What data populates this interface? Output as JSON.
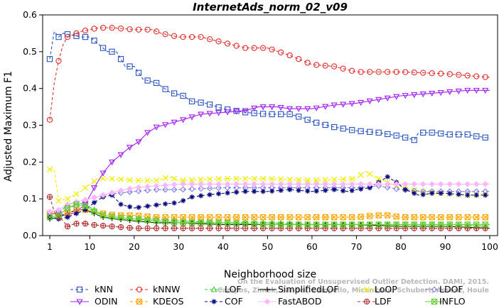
{
  "chart_data": {
    "type": "line",
    "title": "InternetAds_norm_02_v09",
    "xlabel": "Neighborhood size",
    "ylabel": "Adjusted Maximum F1",
    "xlim": [
      1,
      100
    ],
    "ylim": [
      0,
      0.6
    ],
    "xticks": [
      "1",
      "10",
      "20",
      "30",
      "40",
      "50",
      "60",
      "70",
      "80",
      "90",
      "100"
    ],
    "yticks": [
      "0.0",
      "0.1",
      "0.2",
      "0.3",
      "0.4",
      "0.5",
      "0.6"
    ],
    "grid": false,
    "legend_position": "bottom",
    "watermark": {
      "line1": "Campos, Zimek, Sander, Campello, Micenková, Schubert, Assent, Houle",
      "line2": "On the Evaluation of Unsupervised Outlier Detection. DAMI, 2015."
    },
    "series": [
      {
        "name": "kNN",
        "color": "#2a52be",
        "marker": "square",
        "dashed": true,
        "points": [
          [
            1,
            0.48
          ],
          [
            2,
            0.555
          ],
          [
            3,
            0.54
          ],
          [
            4,
            0.55
          ],
          [
            6,
            0.545
          ],
          [
            8,
            0.54
          ],
          [
            10,
            0.54
          ],
          [
            12,
            0.52
          ],
          [
            14,
            0.5
          ],
          [
            16,
            0.5
          ],
          [
            18,
            0.46
          ],
          [
            20,
            0.46
          ],
          [
            22,
            0.425
          ],
          [
            25,
            0.415
          ],
          [
            28,
            0.39
          ],
          [
            31,
            0.38
          ],
          [
            33,
            0.365
          ],
          [
            36,
            0.36
          ],
          [
            40,
            0.345
          ],
          [
            45,
            0.335
          ],
          [
            50,
            0.33
          ],
          [
            55,
            0.33
          ],
          [
            58,
            0.32
          ],
          [
            60,
            0.31
          ],
          [
            65,
            0.295
          ],
          [
            70,
            0.285
          ],
          [
            75,
            0.28
          ],
          [
            80,
            0.27
          ],
          [
            83,
            0.26
          ],
          [
            84,
            0.28
          ],
          [
            88,
            0.28
          ],
          [
            90,
            0.275
          ],
          [
            95,
            0.275
          ],
          [
            97,
            0.27
          ],
          [
            100,
            0.265
          ]
        ]
      },
      {
        "name": "kNNW",
        "color": "#e03030",
        "marker": "circle",
        "dashed": true,
        "points": [
          [
            1,
            0.315
          ],
          [
            2,
            0.415
          ],
          [
            3,
            0.475
          ],
          [
            4,
            0.52
          ],
          [
            5,
            0.54
          ],
          [
            8,
            0.555
          ],
          [
            10,
            0.56
          ],
          [
            12,
            0.565
          ],
          [
            15,
            0.565
          ],
          [
            20,
            0.56
          ],
          [
            24,
            0.56
          ],
          [
            26,
            0.55
          ],
          [
            30,
            0.54
          ],
          [
            35,
            0.54
          ],
          [
            40,
            0.525
          ],
          [
            45,
            0.51
          ],
          [
            50,
            0.51
          ],
          [
            55,
            0.49
          ],
          [
            60,
            0.465
          ],
          [
            65,
            0.46
          ],
          [
            70,
            0.445
          ],
          [
            80,
            0.445
          ],
          [
            90,
            0.44
          ],
          [
            100,
            0.43
          ]
        ]
      },
      {
        "name": "LOF",
        "color": "#33cc33",
        "marker": "triangle-up",
        "dashed": true,
        "points": [
          [
            1,
            0.055
          ],
          [
            3,
            0.06
          ],
          [
            5,
            0.085
          ],
          [
            7,
            0.09
          ],
          [
            9,
            0.085
          ],
          [
            11,
            0.07
          ],
          [
            13,
            0.055
          ],
          [
            16,
            0.05
          ],
          [
            20,
            0.045
          ],
          [
            25,
            0.045
          ],
          [
            30,
            0.04
          ],
          [
            40,
            0.035
          ],
          [
            50,
            0.035
          ],
          [
            60,
            0.03
          ],
          [
            70,
            0.03
          ],
          [
            80,
            0.03
          ],
          [
            90,
            0.03
          ],
          [
            100,
            0.025
          ]
        ]
      },
      {
        "name": "SimplifiedLOF",
        "color": "#111111",
        "marker": "plus",
        "dashed": false,
        "points": [
          [
            1,
            0.045
          ],
          [
            3,
            0.05
          ],
          [
            5,
            0.06
          ],
          [
            7,
            0.07
          ],
          [
            9,
            0.07
          ],
          [
            11,
            0.06
          ],
          [
            13,
            0.05
          ],
          [
            16,
            0.045
          ],
          [
            20,
            0.04
          ],
          [
            25,
            0.035
          ],
          [
            30,
            0.035
          ],
          [
            40,
            0.03
          ],
          [
            50,
            0.03
          ],
          [
            60,
            0.03
          ],
          [
            70,
            0.03
          ],
          [
            80,
            0.025
          ],
          [
            90,
            0.025
          ],
          [
            100,
            0.02
          ]
        ]
      },
      {
        "name": "LoOP",
        "color": "#f0f000",
        "marker": "x",
        "dashed": true,
        "points": [
          [
            1,
            0.18
          ],
          [
            2,
            0.18
          ],
          [
            3,
            0.095
          ],
          [
            5,
            0.1
          ],
          [
            8,
            0.12
          ],
          [
            10,
            0.14
          ],
          [
            12,
            0.155
          ],
          [
            15,
            0.155
          ],
          [
            20,
            0.15
          ],
          [
            25,
            0.15
          ],
          [
            28,
            0.16
          ],
          [
            30,
            0.15
          ],
          [
            40,
            0.155
          ],
          [
            50,
            0.155
          ],
          [
            60,
            0.15
          ],
          [
            70,
            0.155
          ],
          [
            72,
            0.175
          ],
          [
            74,
            0.16
          ],
          [
            80,
            0.13
          ],
          [
            85,
            0.12
          ],
          [
            90,
            0.115
          ],
          [
            95,
            0.11
          ],
          [
            100,
            0.115
          ]
        ]
      },
      {
        "name": "LDOF",
        "color": "#8080e0",
        "marker": "diamond",
        "dashed": true,
        "points": [
          [
            1,
            0.06
          ],
          [
            3,
            0.055
          ],
          [
            5,
            0.075
          ],
          [
            8,
            0.085
          ],
          [
            10,
            0.1
          ],
          [
            13,
            0.11
          ],
          [
            16,
            0.115
          ],
          [
            20,
            0.12
          ],
          [
            25,
            0.125
          ],
          [
            30,
            0.125
          ],
          [
            40,
            0.13
          ],
          [
            50,
            0.13
          ],
          [
            60,
            0.13
          ],
          [
            70,
            0.13
          ],
          [
            75,
            0.135
          ],
          [
            80,
            0.125
          ],
          [
            85,
            0.12
          ],
          [
            90,
            0.12
          ],
          [
            100,
            0.12
          ]
        ]
      },
      {
        "name": "ODIN",
        "color": "#a020f0",
        "marker": "triangle-down",
        "dashed": false,
        "points": [
          [
            1,
            0.06
          ],
          [
            3,
            0.06
          ],
          [
            5,
            0.055
          ],
          [
            7,
            0.065
          ],
          [
            9,
            0.085
          ],
          [
            11,
            0.13
          ],
          [
            13,
            0.17
          ],
          [
            15,
            0.2
          ],
          [
            17,
            0.22
          ],
          [
            19,
            0.24
          ],
          [
            21,
            0.255
          ],
          [
            23,
            0.28
          ],
          [
            25,
            0.295
          ],
          [
            28,
            0.305
          ],
          [
            31,
            0.315
          ],
          [
            35,
            0.33
          ],
          [
            40,
            0.335
          ],
          [
            45,
            0.34
          ],
          [
            48,
            0.35
          ],
          [
            52,
            0.35
          ],
          [
            55,
            0.345
          ],
          [
            60,
            0.345
          ],
          [
            65,
            0.355
          ],
          [
            70,
            0.36
          ],
          [
            75,
            0.37
          ],
          [
            80,
            0.38
          ],
          [
            85,
            0.385
          ],
          [
            90,
            0.39
          ],
          [
            95,
            0.395
          ],
          [
            100,
            0.395
          ]
        ]
      },
      {
        "name": "KDEOS",
        "color": "#ffa500",
        "marker": "square-x",
        "dashed": true,
        "points": [
          [
            1,
            0.06
          ],
          [
            3,
            0.055
          ],
          [
            5,
            0.06
          ],
          [
            7,
            0.07
          ],
          [
            9,
            0.07
          ],
          [
            11,
            0.065
          ],
          [
            13,
            0.06
          ],
          [
            16,
            0.055
          ],
          [
            20,
            0.055
          ],
          [
            25,
            0.05
          ],
          [
            30,
            0.05
          ],
          [
            40,
            0.05
          ],
          [
            50,
            0.05
          ],
          [
            60,
            0.05
          ],
          [
            70,
            0.05
          ],
          [
            75,
            0.055
          ],
          [
            77,
            0.055
          ],
          [
            80,
            0.05
          ],
          [
            90,
            0.05
          ],
          [
            100,
            0.05
          ]
        ]
      },
      {
        "name": "COF",
        "color": "#0a0a80",
        "marker": "asterisk",
        "dashed": true,
        "points": [
          [
            1,
            0.05
          ],
          [
            3,
            0.045
          ],
          [
            5,
            0.05
          ],
          [
            7,
            0.06
          ],
          [
            9,
            0.07
          ],
          [
            11,
            0.09
          ],
          [
            13,
            0.105
          ],
          [
            15,
            0.11
          ],
          [
            17,
            0.085
          ],
          [
            20,
            0.075
          ],
          [
            23,
            0.08
          ],
          [
            26,
            0.085
          ],
          [
            30,
            0.09
          ],
          [
            33,
            0.105
          ],
          [
            36,
            0.11
          ],
          [
            40,
            0.115
          ],
          [
            45,
            0.12
          ],
          [
            50,
            0.12
          ],
          [
            55,
            0.125
          ],
          [
            60,
            0.12
          ],
          [
            65,
            0.125
          ],
          [
            68,
            0.12
          ],
          [
            70,
            0.125
          ],
          [
            73,
            0.13
          ],
          [
            75,
            0.145
          ],
          [
            77,
            0.16
          ],
          [
            79,
            0.145
          ],
          [
            81,
            0.125
          ],
          [
            84,
            0.11
          ],
          [
            87,
            0.115
          ],
          [
            90,
            0.115
          ],
          [
            95,
            0.11
          ],
          [
            100,
            0.11
          ]
        ]
      },
      {
        "name": "FastABOD",
        "color": "#ffb6ff",
        "marker": "diamond-filled",
        "dashed": false,
        "points": [
          [
            1,
            0.065
          ],
          [
            3,
            0.07
          ],
          [
            5,
            0.085
          ],
          [
            8,
            0.095
          ],
          [
            10,
            0.1
          ],
          [
            13,
            0.11
          ],
          [
            16,
            0.12
          ],
          [
            20,
            0.13
          ],
          [
            25,
            0.135
          ],
          [
            30,
            0.14
          ],
          [
            40,
            0.14
          ],
          [
            50,
            0.14
          ],
          [
            60,
            0.14
          ],
          [
            70,
            0.14
          ],
          [
            80,
            0.14
          ],
          [
            90,
            0.14
          ],
          [
            100,
            0.14
          ]
        ]
      },
      {
        "name": "LDF",
        "color": "#b03030",
        "marker": "circle-plus",
        "dashed": true,
        "points": [
          [
            1,
            0.105
          ],
          [
            2,
            0.065
          ],
          [
            3,
            0.05
          ],
          [
            4,
            0.04
          ],
          [
            5,
            0.025
          ],
          [
            6,
            0.03
          ],
          [
            8,
            0.035
          ],
          [
            10,
            0.03
          ],
          [
            15,
            0.025
          ],
          [
            20,
            0.02
          ],
          [
            30,
            0.02
          ],
          [
            40,
            0.02
          ],
          [
            50,
            0.02
          ],
          [
            60,
            0.02
          ],
          [
            70,
            0.02
          ],
          [
            80,
            0.02
          ],
          [
            90,
            0.02
          ],
          [
            100,
            0.02
          ]
        ]
      },
      {
        "name": "INFLO",
        "color": "#66cc33",
        "marker": "square-x",
        "dashed": false,
        "points": [
          [
            1,
            0.05
          ],
          [
            3,
            0.055
          ],
          [
            5,
            0.075
          ],
          [
            7,
            0.085
          ],
          [
            9,
            0.08
          ],
          [
            11,
            0.065
          ],
          [
            13,
            0.055
          ],
          [
            16,
            0.05
          ],
          [
            20,
            0.045
          ],
          [
            25,
            0.04
          ],
          [
            30,
            0.035
          ],
          [
            40,
            0.035
          ],
          [
            50,
            0.03
          ],
          [
            60,
            0.03
          ],
          [
            70,
            0.03
          ],
          [
            80,
            0.03
          ],
          [
            90,
            0.03
          ],
          [
            100,
            0.03
          ]
        ]
      }
    ]
  }
}
